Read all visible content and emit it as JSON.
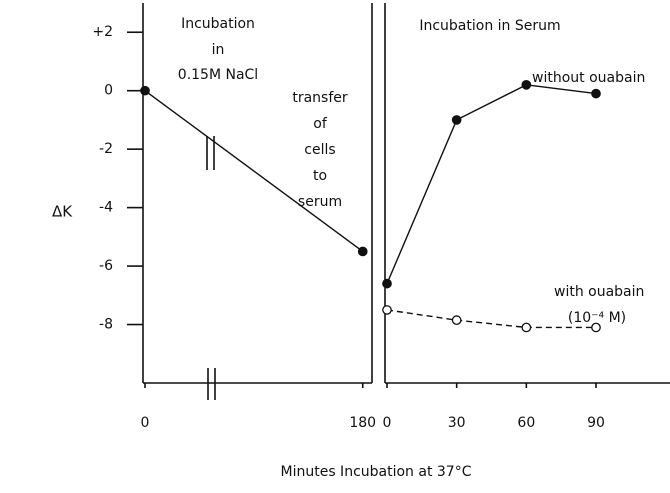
{
  "y_label": "ΔK",
  "x_label": "Minutes Incubation at 37°C",
  "chart_data": [
    {
      "type": "line",
      "title": [
        "Incubation",
        "in",
        "0.15M NaCl"
      ],
      "x": [
        0,
        180
      ],
      "series": [
        {
          "color": "#111111",
          "marker": "filled",
          "dashed": false,
          "values": [
            0,
            -5.5
          ]
        }
      ],
      "xlim": [
        0,
        186
      ],
      "xticks": [
        0,
        180
      ],
      "ylim": [
        -10,
        3
      ],
      "yticks": [
        {
          "value": 2,
          "label": "+2"
        },
        0,
        -2,
        -4,
        -6,
        -8
      ],
      "annotation": [
        "transfer",
        "of",
        "cells",
        "to",
        "serum"
      ]
    },
    {
      "type": "line",
      "title": [
        "Incubation in Serum"
      ],
      "x": [
        0,
        30,
        60,
        90
      ],
      "series": [
        {
          "name": "without ouabain",
          "color": "#111111",
          "marker": "filled",
          "dashed": false,
          "values": [
            -6.6,
            -1.0,
            0.2,
            -0.1
          ]
        },
        {
          "name": "with ouabain",
          "color": "#111111",
          "marker": "open",
          "dashed": true,
          "values": [
            -7.5,
            -7.85,
            -8.1,
            -8.1
          ]
        }
      ],
      "xlim": [
        0,
        121
      ],
      "xticks": [
        0,
        30,
        60,
        90
      ],
      "ylim": [
        -10,
        3
      ],
      "annotation": [
        "(10⁻⁴ M)"
      ]
    }
  ]
}
